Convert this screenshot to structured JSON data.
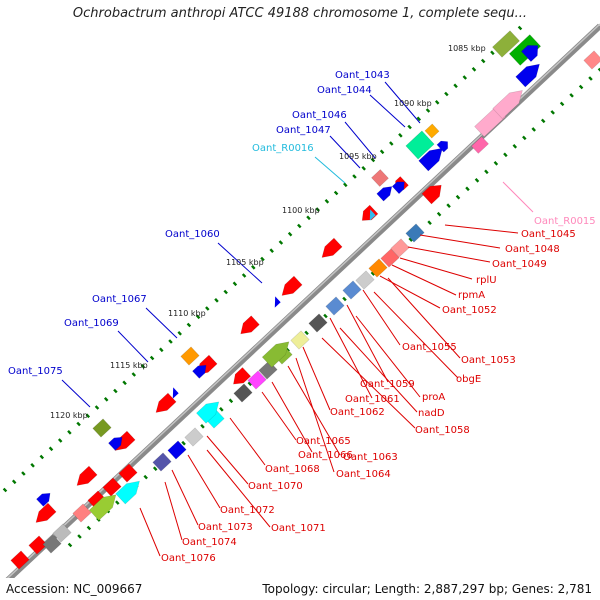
{
  "title": "Ochrobactrum anthropi ATCC 49188 chromosome 1, complete sequ...",
  "footer": {
    "accession": "Accession: NC_009667",
    "topology": "Topology: circular; Length: 2,887,297 bp; Genes: 2,781"
  },
  "colors": {
    "backbone": "#8a8a8a",
    "gene_red": "#ff0000",
    "label_red": "#dd0000",
    "label_blue": "#0000cc",
    "label_cyan": "#22bbdd",
    "label_pink": "#ff88bb",
    "tick": "#007700"
  },
  "scale_labels": [
    "1085 kbp",
    "1090 kbp",
    "1095 kbp",
    "1100 kbp",
    "1105 kbp",
    "1110 kbp",
    "1115 kbp",
    "1120 kbp"
  ],
  "gene_labels": {
    "left": [
      "Oant_1043",
      "Oant_1044",
      "Oant_1046",
      "Oant_1047",
      "Oant_R0016",
      "Oant_1060",
      "Oant_1067",
      "Oant_1069",
      "Oant_1075"
    ],
    "right": [
      "Oant_R0015",
      "Oant_1045",
      "Oant_1048",
      "Oant_1049",
      "rplU",
      "rpmA",
      "Oant_1052",
      "Oant_1055",
      "Oant_1053",
      "obgE",
      "Oant_1059",
      "proA",
      "Oant_1061",
      "nadD",
      "Oant_1062",
      "Oant_1058",
      "Oant_1065",
      "Oant_1066",
      "Oant_1063",
      "Oant_1064",
      "Oant_1068",
      "Oant_1070",
      "Oant_1072",
      "Oant_1073",
      "Oant_1071",
      "Oant_1074",
      "Oant_1076"
    ]
  }
}
